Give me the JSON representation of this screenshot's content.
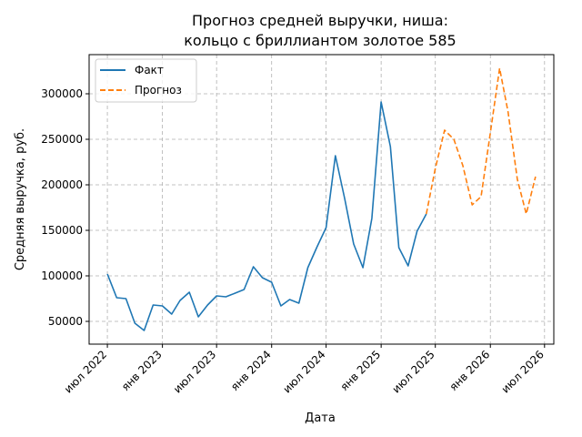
{
  "chart_data": {
    "type": "line",
    "title": "Прогноз средней выручки, ниша:",
    "subtitle": "кольцо с бриллиантом золотое 585",
    "xlabel": "Дата",
    "ylabel": "Средняя выручка, руб.",
    "x_ticks": [
      "июл 2022",
      "янв 2023",
      "июл 2023",
      "янв 2024",
      "июл 2024",
      "янв 2025",
      "июл 2025",
      "янв 2026",
      "июл 2026"
    ],
    "y_ticks": [
      50000,
      100000,
      150000,
      200000,
      250000,
      300000
    ],
    "y_tick_labels": [
      "50000",
      "100000",
      "150000",
      "200000",
      "250000",
      "300000"
    ],
    "xlim": [
      "2022-05-01",
      "2026-08-01"
    ],
    "ylim": [
      25000,
      343000
    ],
    "grid": true,
    "legend_position": "top-left",
    "series": [
      {
        "name": "Факт",
        "color": "#1f77b4",
        "style": "solid",
        "points": [
          [
            "2022-07-01",
            102000
          ],
          [
            "2022-08-01",
            76000
          ],
          [
            "2022-09-01",
            75000
          ],
          [
            "2022-10-01",
            48000
          ],
          [
            "2022-11-01",
            40000
          ],
          [
            "2022-12-01",
            68000
          ],
          [
            "2023-01-01",
            67000
          ],
          [
            "2023-02-01",
            58000
          ],
          [
            "2023-03-01",
            73000
          ],
          [
            "2023-04-01",
            82000
          ],
          [
            "2023-05-01",
            55000
          ],
          [
            "2023-06-01",
            68000
          ],
          [
            "2023-07-01",
            78000
          ],
          [
            "2023-08-01",
            77000
          ],
          [
            "2023-09-01",
            81000
          ],
          [
            "2023-10-01",
            85000
          ],
          [
            "2023-11-01",
            110000
          ],
          [
            "2023-12-01",
            98000
          ],
          [
            "2024-01-01",
            93000
          ],
          [
            "2024-02-01",
            67000
          ],
          [
            "2024-03-01",
            74000
          ],
          [
            "2024-04-01",
            70000
          ],
          [
            "2024-05-01",
            109000
          ],
          [
            "2024-06-01",
            132000
          ],
          [
            "2024-07-01",
            153000
          ],
          [
            "2024-08-01",
            232000
          ],
          [
            "2024-09-01",
            185000
          ],
          [
            "2024-10-01",
            135000
          ],
          [
            "2024-11-01",
            109000
          ],
          [
            "2024-12-01",
            163000
          ],
          [
            "2025-01-01",
            291000
          ],
          [
            "2025-02-01",
            242000
          ],
          [
            "2025-03-01",
            131000
          ],
          [
            "2025-04-01",
            111000
          ],
          [
            "2025-05-01",
            149000
          ],
          [
            "2025-06-01",
            168000
          ]
        ]
      },
      {
        "name": "Прогноз",
        "color": "#ff7f0e",
        "style": "dashed",
        "points": [
          [
            "2025-06-01",
            168000
          ],
          [
            "2025-07-01",
            218000
          ],
          [
            "2025-08-01",
            260000
          ],
          [
            "2025-09-01",
            250000
          ],
          [
            "2025-10-01",
            221000
          ],
          [
            "2025-11-01",
            178000
          ],
          [
            "2025-12-01",
            187000
          ],
          [
            "2026-01-01",
            257000
          ],
          [
            "2026-02-01",
            328000
          ],
          [
            "2026-03-01",
            280000
          ],
          [
            "2026-04-01",
            206000
          ],
          [
            "2026-05-01",
            168000
          ],
          [
            "2026-06-01",
            209000
          ]
        ]
      }
    ]
  }
}
